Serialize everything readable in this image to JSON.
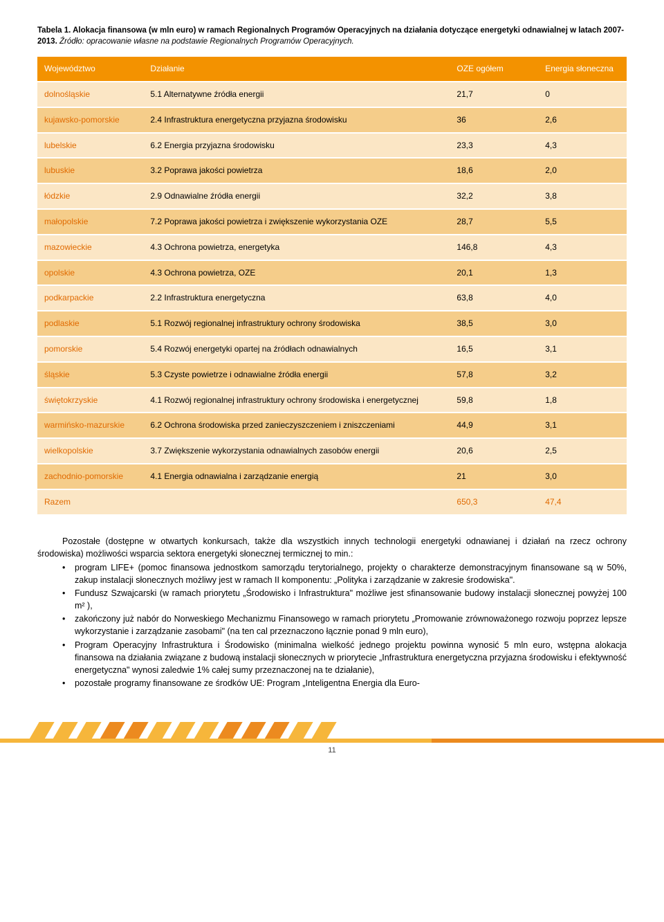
{
  "caption": {
    "title": "Tabela 1. Alokacja finansowa (w mln euro) w ramach Regionalnych Programów Operacyjnych na działania dotyczące energetyki odnawialnej w latach 2007-2013.",
    "source": "Źródło: opracowanie własne na podstawie Regionalnych Programów Operacyjnych."
  },
  "table": {
    "columns": [
      "Województwo",
      "Działanie",
      "OZE ogółem",
      "Energia słoneczna"
    ],
    "col_widths": [
      "18%",
      "52%",
      "15%",
      "15%"
    ],
    "header_bg": "#f39200",
    "header_fg": "#ffffff",
    "row_bg": "#fbe6c5",
    "row_alt_bg": "#f5cd8a",
    "accent_fg": "#e06a00",
    "rows": [
      {
        "w": "dolnośląskie",
        "d": "5.1 Alternatywne źródła energii",
        "o": "21,7",
        "e": "0"
      },
      {
        "w": "kujawsko-pomorskie",
        "d": "2.4 Infrastruktura energetyczna przyjazna środowisku",
        "o": "36",
        "e": "2,6"
      },
      {
        "w": "lubelskie",
        "d": "6.2 Energia przyjazna środowisku",
        "o": "23,3",
        "e": "4,3"
      },
      {
        "w": "lubuskie",
        "d": "3.2 Poprawa jakości powietrza",
        "o": "18,6",
        "e": "2,0"
      },
      {
        "w": "łódzkie",
        "d": "2.9 Odnawialne źródła energii",
        "o": "32,2",
        "e": "3,8"
      },
      {
        "w": "małopolskie",
        "d": "7.2 Poprawa jakości powietrza i zwiększenie wykorzystania OZE",
        "o": "28,7",
        "e": "5,5"
      },
      {
        "w": "mazowieckie",
        "d": "4.3 Ochrona powietrza, energetyka",
        "o": "146,8",
        "e": "4,3"
      },
      {
        "w": "opolskie",
        "d": "4.3 Ochrona powietrza, OZE",
        "o": "20,1",
        "e": "1,3"
      },
      {
        "w": "podkarpackie",
        "d": "2.2 Infrastruktura energetyczna",
        "o": "63,8",
        "e": "4,0"
      },
      {
        "w": "podlaskie",
        "d": "5.1 Rozwój regionalnej infrastruktury ochrony środowiska",
        "o": "38,5",
        "e": "3,0"
      },
      {
        "w": "pomorskie",
        "d": "5.4 Rozwój energetyki opartej na źródłach odnawialnych",
        "o": "16,5",
        "e": "3,1"
      },
      {
        "w": "śląskie",
        "d": "5.3 Czyste powietrze i odnawialne źródła energii",
        "o": "57,8",
        "e": "3,2"
      },
      {
        "w": "świętokrzyskie",
        "d": "4.1 Rozwój regionalnej infrastruktury ochrony środowiska i energetycznej",
        "o": "59,8",
        "e": "1,8"
      },
      {
        "w": "warmińsko-mazurskie",
        "d": "6.2 Ochrona środowiska przed zanieczyszczeniem i zniszczeniami",
        "o": "44,9",
        "e": "3,1"
      },
      {
        "w": "wielkopolskie",
        "d": "3.7 Zwiększenie wykorzystania odnawialnych zasobów energii",
        "o": "20,6",
        "e": "2,5"
      },
      {
        "w": "zachodnio-pomorskie",
        "d": "4.1 Energia odnawialna i zarządzanie energią",
        "o": "21",
        "e": "3,0"
      },
      {
        "w": "Razem",
        "d": "",
        "o": "650,3",
        "e": "47,4"
      }
    ]
  },
  "narrative": {
    "intro": "Pozostałe (dostępne w otwartych konkursach, także dla wszystkich innych technologii energetyki odnawianej i działań na rzecz ochrony środowiska) możliwości wsparcia sektora energetyki słonecznej termicznej to min.:",
    "bullets": [
      "program LIFE+ (pomoc finansowa jednostkom samorządu terytorialnego, projekty o charakterze demonstracyjnym finansowane są w 50%, zakup instalacji słonecznych możliwy jest w ramach II komponentu: „Polityka i zarządzanie w zakresie środowiska\".",
      "Fundusz Szwajcarski (w ramach priorytetu „Środowisko i Infrastruktura\" możliwe jest sfinansowanie budowy instalacji słonecznej powyżej 100 m² ),",
      "zakończony już nabór do Norweskiego Mechanizmu Finansowego w ramach priorytetu „Promowanie zrównoważonego rozwoju poprzez lepsze wykorzystanie i zarządzanie zasobami\" (na ten cal przeznaczono łącznie ponad 9 mln euro),",
      "Program Operacyjny Infrastruktura i Środowisko (minimalna wielkość jednego projektu powinna wynosić 5 mln euro, wstępna alokacja finansowa na działania związane z budową instalacji słonecznych w priorytecie „Infrastruktura energetyczna przyjazna środowisku i efektywność energetyczna\" wynosi zaledwie 1% całej sumy przeznaczonej na te działanie),",
      "pozostałe programy finansowane ze środków UE: Program „Inteligentna Energia dla Euro-"
    ]
  },
  "page_number": "11",
  "deco": {
    "yellow": "#f6b63b",
    "orange": "#ec8a1f"
  }
}
